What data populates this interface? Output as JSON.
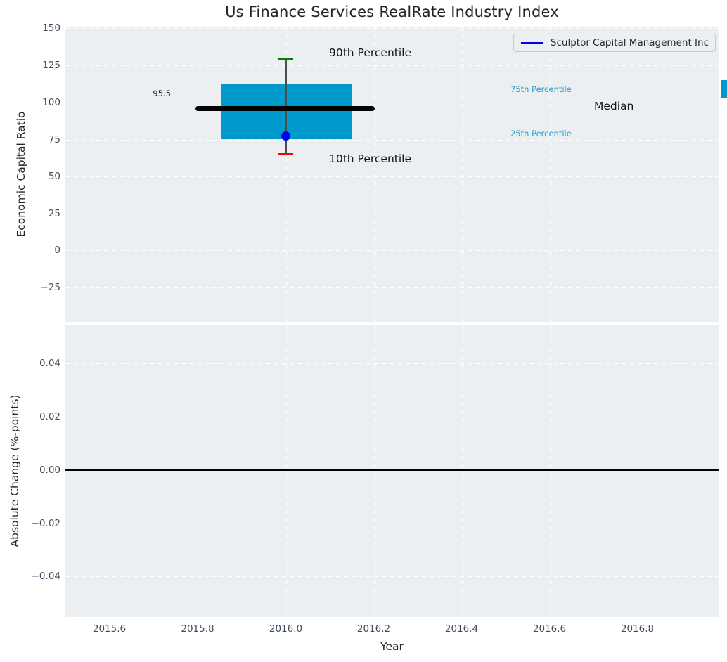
{
  "figure": {
    "title": "Us Finance Services RealRate Industry Index"
  },
  "legend": {
    "label": "Sculptor Capital Management Inc",
    "line_color": "#0000ee",
    "position": "upper right"
  },
  "top_axes": {
    "ylabel": "Economic Capital Ratio",
    "yticks": [
      "150",
      "125",
      "100",
      "75",
      "50",
      "25",
      "0",
      "−25"
    ],
    "annotations": {
      "median_value": "95.5",
      "p90": "90th Percentile",
      "p10": "10th Percentile",
      "p75": "75th Percentile",
      "p25": "25th Percentile",
      "median": "Median"
    }
  },
  "bottom_axes": {
    "ylabel": "Absolute Change (%-points)",
    "yticks": [
      "0.04",
      "0.02",
      "0.00",
      "−0.02",
      "−0.04"
    ]
  },
  "x_axis": {
    "label": "Year",
    "ticks": [
      "2015.6",
      "2015.8",
      "2016.0",
      "2016.2",
      "2016.4",
      "2016.6",
      "2016.8"
    ]
  },
  "colors": {
    "axes_background": "#eceff1",
    "iqr_box": "#0099cc",
    "p90_cap": "#008000",
    "p10_cap": "#ff0000",
    "median_line": "#000000",
    "company_marker": "#0000ee",
    "percentile_text": "#1a9cd3",
    "grid": "#ffffff"
  },
  "chart_data": [
    {
      "type": "box",
      "title": "Us Finance Services RealRate Industry Index",
      "xlabel": "Year",
      "ylabel": "Economic Capital Ratio",
      "xlim": [
        2015.5,
        2016.98
      ],
      "ylim": [
        -48,
        151
      ],
      "grid": true,
      "x": [
        2016.0
      ],
      "boxes": [
        {
          "x": 2016.0,
          "p10": 65,
          "p25": 75,
          "median": 95.5,
          "p75": 112,
          "p90": 128.5,
          "box_x_span": [
            2015.85,
            2016.15
          ],
          "median_x_span": [
            2015.8,
            2016.2
          ],
          "median_label": "95.5"
        }
      ],
      "series": [
        {
          "name": "Sculptor Capital Management Inc",
          "type": "scatter",
          "x": [
            2016.0
          ],
          "values": [
            76.5
          ]
        }
      ],
      "legend_position": "upper right"
    },
    {
      "type": "line",
      "xlabel": "Year",
      "ylabel": "Absolute Change (%-points)",
      "xlim": [
        2015.5,
        2016.98
      ],
      "ylim": [
        -0.055,
        0.055
      ],
      "grid": true,
      "zero_line": 0.0,
      "series": []
    }
  ]
}
